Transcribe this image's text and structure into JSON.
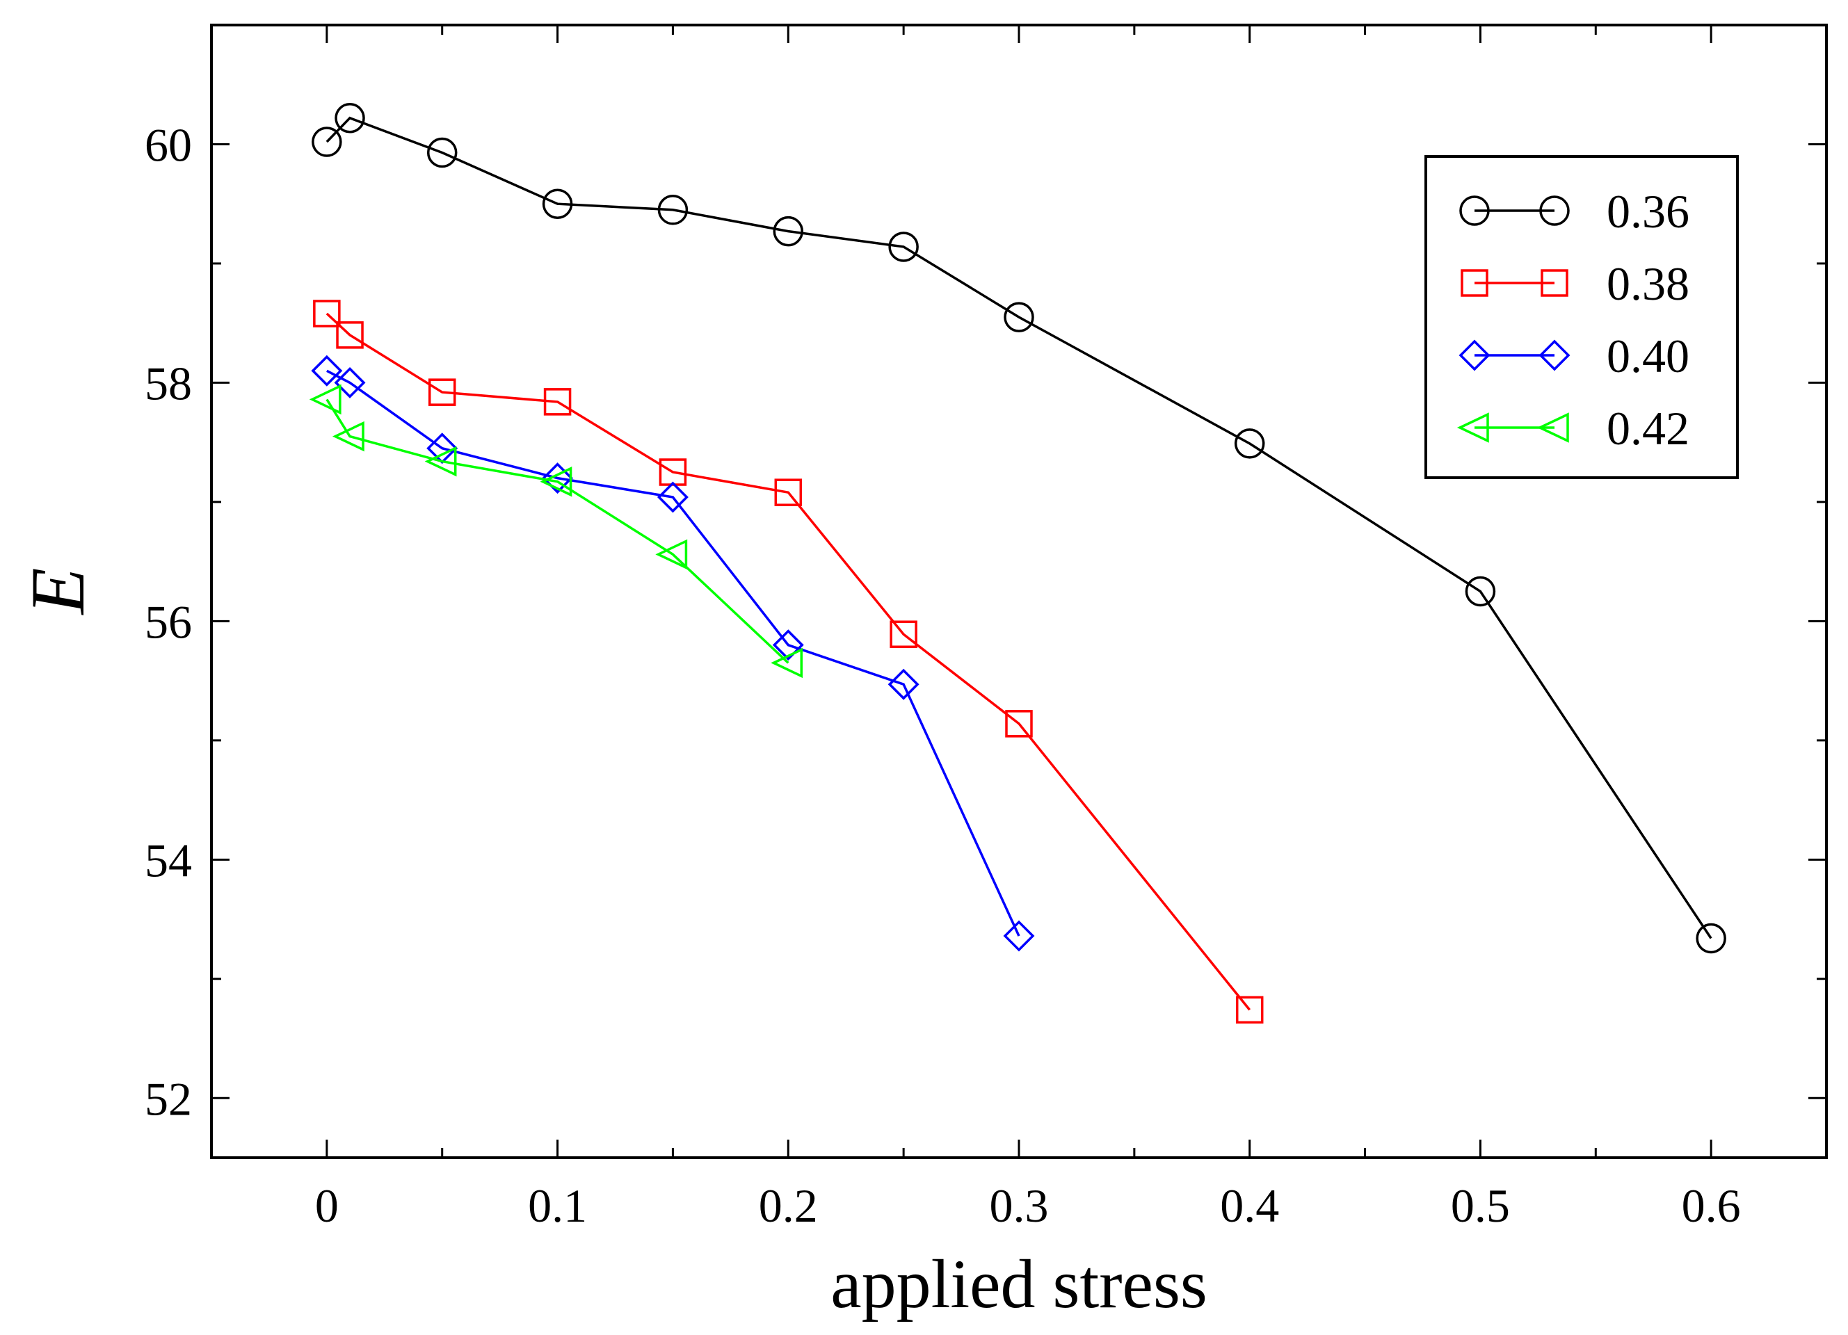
{
  "chart_data": {
    "type": "line",
    "title": "",
    "xlabel": "applied stress",
    "ylabel": "E",
    "xlim": [
      -0.05,
      0.65
    ],
    "ylim": [
      51.5,
      61.0
    ],
    "xticks": [
      0,
      0.1,
      0.2,
      0.3,
      0.4,
      0.5,
      0.6
    ],
    "xtick_labels": [
      "0",
      "0.1",
      "0.2",
      "0.3",
      "0.4",
      "0.5",
      "0.6"
    ],
    "xminor": [
      0.05,
      0.15,
      0.25,
      0.35,
      0.45,
      0.55
    ],
    "yticks": [
      52,
      54,
      56,
      58,
      60
    ],
    "ytick_labels": [
      "52",
      "54",
      "56",
      "58",
      "60"
    ],
    "yminor": [
      53,
      55,
      57,
      59
    ],
    "grid": false,
    "legend_position": "top-right",
    "series": [
      {
        "name": "0.36",
        "color": "#000000",
        "marker": "circle",
        "x": [
          0,
          0.01,
          0.05,
          0.1,
          0.15,
          0.2,
          0.25,
          0.3,
          0.4,
          0.5,
          0.6
        ],
        "y": [
          60.02,
          60.22,
          59.93,
          59.5,
          59.45,
          59.27,
          59.14,
          58.55,
          57.49,
          56.25,
          53.34
        ]
      },
      {
        "name": "0.38",
        "color": "#ff0000",
        "marker": "square",
        "x": [
          0,
          0.01,
          0.05,
          0.1,
          0.15,
          0.2,
          0.25,
          0.3,
          0.4
        ],
        "y": [
          58.58,
          58.4,
          57.92,
          57.84,
          57.25,
          57.08,
          55.89,
          55.14,
          52.74
        ]
      },
      {
        "name": "0.40",
        "color": "#0000ff",
        "marker": "diamond",
        "x": [
          0,
          0.01,
          0.05,
          0.1,
          0.15,
          0.2,
          0.25,
          0.3
        ],
        "y": [
          58.1,
          58.0,
          57.45,
          57.2,
          57.04,
          55.8,
          55.47,
          53.36
        ]
      },
      {
        "name": "0.42",
        "color": "#00ff00",
        "marker": "triangle-left",
        "x": [
          0,
          0.01,
          0.05,
          0.1,
          0.15,
          0.2
        ],
        "y": [
          57.86,
          57.55,
          57.34,
          57.17,
          56.56,
          55.65
        ]
      }
    ]
  }
}
